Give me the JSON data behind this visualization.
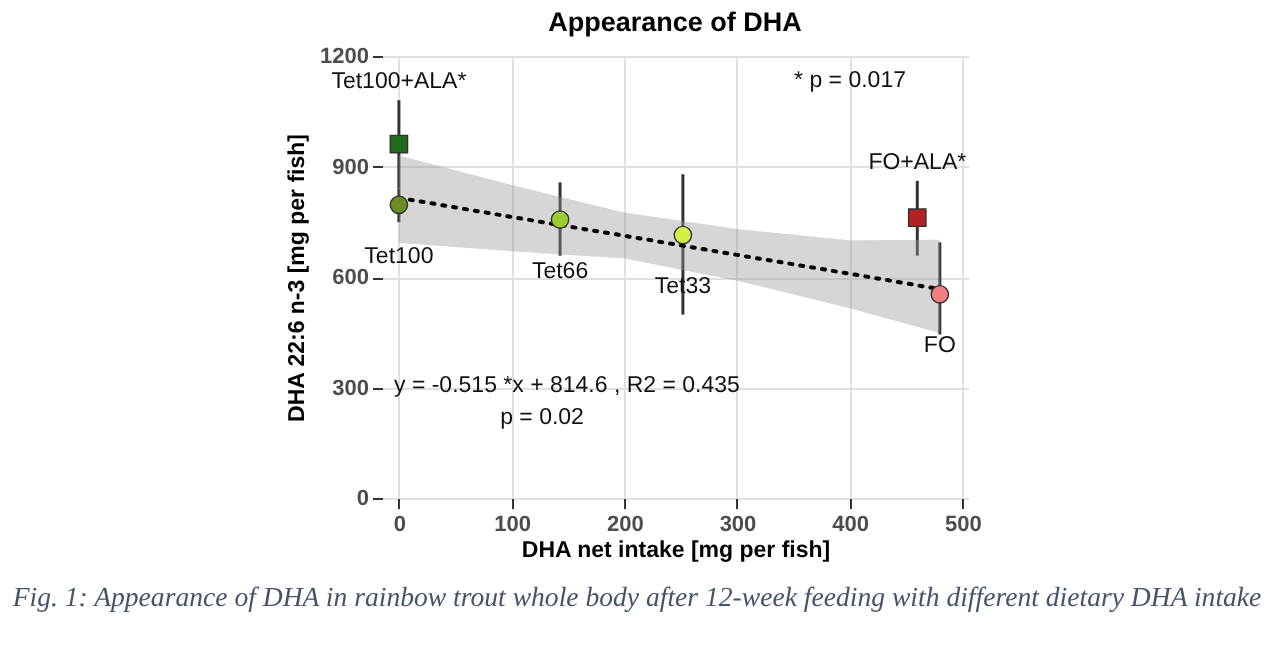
{
  "chart_data": {
    "type": "scatter",
    "title": "Appearance of DHA",
    "xlabel": "DHA net intake [mg per fish]",
    "ylabel": "DHA 22:6 n-3 [mg per fish]",
    "xlim": [
      -15,
      505
    ],
    "xticks": [
      0,
      100,
      200,
      300,
      400,
      500
    ],
    "ylim": [
      0,
      1200
    ],
    "yticks": [
      0,
      300,
      600,
      900,
      {
        "value": 1200,
        "label": "1200"
      }
    ],
    "grid": true,
    "series": [
      {
        "name": "Tet100+ALA*",
        "color": "#1e6b1e",
        "marker": "square",
        "x": [
          0
        ],
        "values": [
          961
        ],
        "errors": [
          [
            840,
            1080
          ]
        ]
      },
      {
        "name": "Tet100",
        "color": "#6b8e23",
        "marker": "circle",
        "x": [
          0
        ],
        "values": [
          796
        ],
        "errors": [
          [
            749,
            840
          ]
        ]
      },
      {
        "name": "Tet66",
        "color": "#9acd32",
        "marker": "circle",
        "x": [
          143
        ],
        "values": [
          756
        ],
        "errors": [
          [
            658,
            857
          ]
        ]
      },
      {
        "name": "Tet33",
        "color": "#d4f046",
        "marker": "circle",
        "x": [
          252
        ],
        "values": [
          714
        ],
        "errors": [
          [
            498,
            879
          ]
        ]
      },
      {
        "name": "FO+ALA*",
        "color": "#b22222",
        "marker": "square",
        "x": [
          460
        ],
        "values": [
          761
        ],
        "errors": [
          [
            658,
            861
          ]
        ]
      },
      {
        "name": "FO",
        "color": "#f08080",
        "marker": "circle",
        "x": [
          480
        ],
        "values": [
          553
        ],
        "errors": [
          [
            444,
            694
          ]
        ]
      },
      {
        "type": "line",
        "color": "#000000",
        "line_style": "dotted",
        "x": [
          0,
          100,
          200,
          300,
          400,
          480
        ],
        "values": [
          815,
          763,
          712,
          660,
          609,
          567
        ],
        "lower": [
          692,
          670,
          650,
          590,
          515,
          448
        ],
        "upper": [
          930,
          850,
          775,
          730,
          700,
          701
        ]
      }
    ],
    "annotations": [
      "* p = 0.017",
      "y = -0.515 *x + 814.6 , R2 = 0.435",
      "p  = 0.02",
      "Fig. 1: Appearance of DHA in rainbow trout whole body after 12-week feeding with different dietary DHA intake"
    ]
  }
}
